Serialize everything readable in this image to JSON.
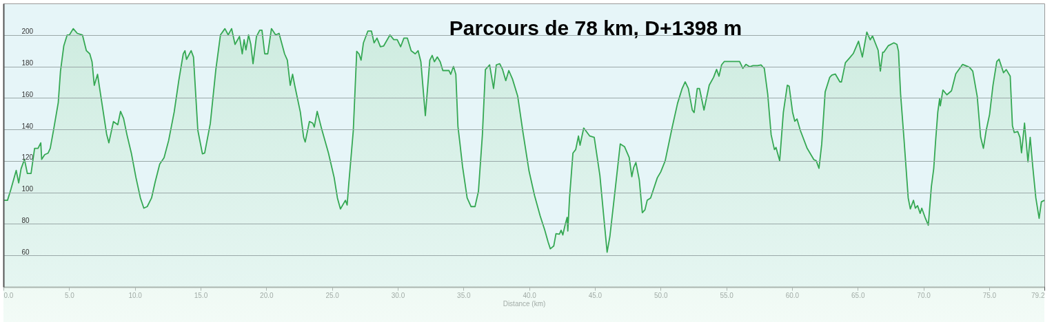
{
  "chart_data": {
    "type": "area",
    "title": "Parcours de 78 km, D+1398 m",
    "xlabel": "Distance  (km)",
    "x": [
      0,
      0.31,
      0.57,
      0.97,
      1.16,
      1.34,
      1.6,
      1.82,
      2.1,
      2.37,
      2.63,
      2.84,
      2.91,
      3.14,
      3.4,
      3.56,
      3.82,
      4.17,
      4.34,
      4.59,
      4.85,
      5.02,
      5.31,
      5.62,
      6.01,
      6.31,
      6.57,
      6.74,
      6.91,
      7.16,
      7.34,
      7.85,
      8.02,
      8.37,
      8.7,
      8.91,
      9.14,
      9.4,
      9.73,
      10.08,
      10.42,
      10.68,
      10.94,
      11.27,
      11.54,
      11.89,
      12.22,
      12.57,
      12.99,
      13.34,
      13.68,
      13.81,
      13.93,
      14.28,
      14.46,
      14.79,
      15.14,
      15.31,
      15.74,
      16.16,
      16.51,
      16.85,
      17.1,
      17.36,
      17.62,
      17.96,
      18.17,
      18.31,
      18.45,
      18.65,
      18.82,
      18.99,
      19.25,
      19.5,
      19.67,
      19.88,
      20.11,
      20.39,
      20.71,
      20.97,
      21.39,
      21.6,
      21.82,
      22.0,
      22.16,
      22.59,
      22.84,
      22.96,
      23.28,
      23.54,
      23.65,
      23.87,
      24.22,
      24.73,
      25.16,
      25.41,
      25.64,
      26.02,
      26.15,
      26.27,
      26.62,
      26.88,
      27.05,
      27.21,
      27.39,
      27.73,
      28.0,
      28.2,
      28.42,
      28.68,
      28.93,
      29.41,
      29.7,
      29.96,
      30.22,
      30.47,
      30.73,
      31.02,
      31.33,
      31.55,
      31.76,
      32.1,
      32.44,
      32.62,
      32.79,
      33.01,
      33.23,
      33.43,
      33.9,
      34.03,
      34.24,
      34.42,
      34.58,
      34.72,
      34.93,
      35.28,
      35.58,
      35.88,
      36.14,
      36.44,
      36.67,
      36.99,
      37.29,
      37.5,
      37.76,
      37.98,
      38.22,
      38.45,
      38.73,
      39.13,
      39.53,
      39.99,
      40.41,
      40.84,
      41.18,
      41.44,
      41.61,
      41.87,
      42.04,
      42.3,
      42.43,
      42.56,
      42.73,
      42.89,
      42.94,
      43.07,
      43.33,
      43.54,
      43.75,
      43.87,
      44.15,
      44.61,
      44.95,
      45.38,
      45.72,
      45.93,
      46.14,
      46.49,
      46.93,
      47.26,
      47.61,
      47.81,
      47.95,
      48.12,
      48.38,
      48.61,
      48.81,
      48.98,
      49.24,
      49.75,
      50.01,
      50.35,
      50.87,
      51.29,
      51.64,
      51.87,
      52.11,
      52.41,
      52.55,
      52.79,
      52.96,
      53.3,
      53.7,
      54.03,
      54.26,
      54.44,
      54.64,
      54.84,
      56.01,
      56.26,
      56.49,
      56.78,
      57.03,
      57.38,
      57.64,
      57.89,
      58.15,
      58.41,
      58.66,
      58.78,
      59.06,
      59.34,
      59.64,
      59.78,
      60.04,
      60.21,
      60.38,
      60.63,
      61.15,
      61.66,
      61.84,
      62.05,
      62.26,
      62.52,
      62.87,
      63.03,
      63.29,
      63.64,
      63.76,
      64.06,
      64.37,
      64.66,
      65.06,
      65.35,
      65.69,
      65.95,
      66.12,
      66.55,
      66.72,
      66.9,
      66.98,
      67.33,
      67.75,
      67.98,
      68.1,
      68.26,
      68.52,
      68.84,
      69.0,
      69.24,
      69.38,
      69.55,
      69.75,
      69.87,
      70.15,
      70.37,
      70.49,
      70.6,
      70.78,
      70.92,
      71.09,
      71.23,
      71.28,
      71.48,
      71.78,
      72.13,
      72.46,
      72.98,
      73.49,
      73.75,
      74.09,
      74.35,
      74.56,
      74.77,
      75.03,
      75.29,
      75.58,
      75.75,
      76.09,
      76.3,
      76.6,
      76.77,
      76.91,
      77.17,
      77.34,
      77.46,
      77.69,
      77.95,
      78.12,
      78.32,
      78.55,
      78.8,
      78.97,
      79.2
    ],
    "series": [
      {
        "color": "#35a853",
        "values": [
          95,
          95,
          102,
          114,
          106,
          115,
          121,
          112,
          112,
          128,
          128,
          131.5,
          121,
          124,
          125,
          128,
          140,
          157,
          177,
          193,
          200,
          200,
          204,
          201,
          200,
          190,
          188,
          183,
          168,
          175,
          165,
          137,
          131.5,
          145,
          143,
          151.5,
          147,
          136.5,
          125,
          109.5,
          96.5,
          90,
          91,
          96.5,
          106.5,
          118,
          122,
          133,
          151,
          171,
          188,
          190,
          184.5,
          190,
          186,
          139.5,
          124.5,
          125,
          143.8,
          178,
          200,
          204,
          200,
          204,
          194,
          199,
          188,
          197,
          190.5,
          200,
          194,
          181.7,
          199,
          203,
          203,
          188,
          188,
          204,
          200,
          201,
          188,
          184,
          168,
          175,
          168,
          151,
          135,
          132,
          145,
          144,
          141.5,
          151.5,
          140,
          125,
          109.5,
          96.5,
          89.5,
          95,
          92,
          105,
          139.5,
          189.6,
          188,
          184,
          195,
          202.5,
          202.5,
          195,
          198,
          192.5,
          193,
          200,
          197,
          197,
          192.5,
          198,
          198,
          190,
          188,
          190,
          183,
          148.7,
          184,
          187,
          183,
          186,
          183,
          177.4,
          177.4,
          175,
          180,
          175,
          142,
          132,
          116.5,
          96.5,
          91,
          91,
          100.7,
          136.5,
          178,
          181,
          166,
          181,
          181.7,
          178,
          171,
          177.4,
          172,
          161,
          138,
          113.6,
          98,
          85,
          76.3,
          68.5,
          64.2,
          66,
          73.8,
          73.5,
          76,
          73,
          79.2,
          84.2,
          75.5,
          96.5,
          125,
          127.2,
          135.8,
          130,
          140.9,
          135.8,
          135,
          110.8,
          80.6,
          62,
          72,
          97.8,
          130.8,
          129,
          122.2,
          110,
          115.8,
          119,
          107.9,
          87.1,
          89,
          95,
          96.5,
          109.3,
          113,
          120.1,
          140.9,
          156.6,
          166,
          170.2,
          166,
          152.3,
          150.7,
          166,
          166,
          152.3,
          168.1,
          173.1,
          178.1,
          173.8,
          181,
          183.1,
          183.1,
          178.8,
          181.3,
          179.8,
          180.5,
          180.5,
          181,
          178.8,
          162.4,
          136.6,
          127.2,
          128.6,
          120.1,
          150.9,
          168.1,
          167.4,
          151,
          145.2,
          146.6,
          139.4,
          128,
          120.8,
          120.1,
          115.3,
          130.8,
          163.8,
          173.1,
          174.5,
          175.2,
          170.2,
          170.2,
          182.4,
          185.3,
          188.2,
          196,
          186,
          201.8,
          196.9,
          199.4,
          190.3,
          177,
          189,
          189,
          193.2,
          195,
          194,
          189.6,
          162.4,
          133.7,
          96.4,
          89.5,
          95,
          90,
          91.6,
          86.7,
          90,
          83.5,
          79.2,
          92,
          103.6,
          115.1,
          132.3,
          151,
          159.5,
          155,
          165,
          162,
          164.5,
          175.3,
          181.3,
          179.5,
          177,
          161,
          135.1,
          128,
          139.3,
          149.5,
          168.1,
          183.1,
          184.6,
          176,
          178,
          173.8,
          142.3,
          138,
          138.7,
          135,
          125.1,
          144,
          119.4,
          135,
          116,
          96.5,
          83.5,
          94,
          95
        ]
      }
    ],
    "xlim": [
      0,
      79.2
    ],
    "ylim": [
      40,
      220
    ],
    "xticks": [
      {
        "value": 0,
        "label": "0.0"
      },
      {
        "value": 5,
        "label": "5.0"
      },
      {
        "value": 10,
        "label": "10.0"
      },
      {
        "value": 15,
        "label": "15.0"
      },
      {
        "value": 20,
        "label": "20.0"
      },
      {
        "value": 25,
        "label": "25.0"
      },
      {
        "value": 30,
        "label": "30.0"
      },
      {
        "value": 35,
        "label": "35.0"
      },
      {
        "value": 40,
        "label": "40.0"
      },
      {
        "value": 45,
        "label": "45.0"
      },
      {
        "value": 50,
        "label": "50.0"
      },
      {
        "value": 55,
        "label": "55.0"
      },
      {
        "value": 60,
        "label": "60.0"
      },
      {
        "value": 65,
        "label": "65.0"
      },
      {
        "value": 70,
        "label": "70.0"
      },
      {
        "value": 75,
        "label": "75.0"
      },
      {
        "value": 79.2,
        "label": "79.2"
      }
    ],
    "yticks": [
      60,
      80,
      100,
      120,
      140,
      160,
      180,
      200
    ],
    "grid": "y",
    "marker": "none",
    "line_style": "solid"
  }
}
